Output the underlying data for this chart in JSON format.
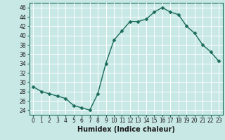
{
  "x": [
    0,
    1,
    2,
    3,
    4,
    5,
    6,
    7,
    8,
    9,
    10,
    11,
    12,
    13,
    14,
    15,
    16,
    17,
    18,
    19,
    20,
    21,
    22,
    23
  ],
  "y": [
    29,
    28,
    27.5,
    27,
    26.5,
    25,
    24.5,
    24,
    27.5,
    34,
    39,
    41,
    43,
    43,
    43.5,
    45,
    46,
    45,
    44.5,
    42,
    40.5,
    38,
    36.5,
    34.5
  ],
  "line_color": "#1a6b5a",
  "marker_color": "#1a6b5a",
  "bg_color": "#c8e8e5",
  "grid_color": "#ffffff",
  "xlabel": "Humidex (Indice chaleur)",
  "xlim": [
    -0.5,
    23.5
  ],
  "ylim": [
    23,
    47
  ],
  "yticks": [
    24,
    26,
    28,
    30,
    32,
    34,
    36,
    38,
    40,
    42,
    44,
    46
  ],
  "xticks": [
    0,
    1,
    2,
    3,
    4,
    5,
    6,
    7,
    8,
    9,
    10,
    11,
    12,
    13,
    14,
    15,
    16,
    17,
    18,
    19,
    20,
    21,
    22,
    23
  ],
  "tick_label_fontsize": 5.5,
  "xlabel_fontsize": 7.0,
  "marker_size": 2.5,
  "line_width": 1.0
}
